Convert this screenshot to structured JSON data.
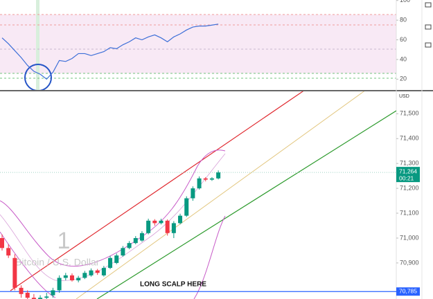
{
  "chart_data": [
    {
      "type": "line",
      "values": [
        62,
        56,
        49,
        42,
        34,
        28,
        25,
        20,
        27,
        39,
        38,
        41,
        46,
        46,
        44,
        46,
        48,
        52,
        51,
        55,
        58,
        62,
        60,
        63,
        65,
        62,
        58,
        63,
        66,
        70,
        73,
        74,
        74,
        75,
        76
      ],
      "color": "#3d6fd8",
      "ylim": [
        9,
        100.5
      ],
      "yticks": [
        20,
        40,
        60,
        80,
        100
      ]
    },
    {
      "type": "candlestick",
      "currency": "USD",
      "watermark": "1",
      "symbol": "Bitcoin / U.S. Dollar",
      "annotation": "LONG SCALP HERE",
      "up_color": "#089981",
      "down_color": "#f23645",
      "ylim": [
        70755,
        71590
      ],
      "yticks": [
        {
          "value": 70900,
          "label": "70,900"
        },
        {
          "value": 71000,
          "label": "71,000"
        },
        {
          "value": 71100,
          "label": "71,100"
        },
        {
          "value": 71200,
          "label": "71,200"
        },
        {
          "value": 71300,
          "label": "71,300"
        },
        {
          "value": 71400,
          "label": "71,400"
        },
        {
          "value": 71500,
          "label": "71,500"
        }
      ],
      "last_price": {
        "value": 71264,
        "label": "71,264"
      },
      "countdown": "00:21",
      "level": {
        "value": 70785,
        "label": "70,785"
      },
      "candles": [
        {
          "open": 71000,
          "high": 71015,
          "low": 70950,
          "close": 70960
        },
        {
          "open": 70960,
          "high": 70975,
          "low": 70920,
          "close": 70930
        },
        {
          "open": 70920,
          "high": 70935,
          "low": 70790,
          "close": 70800
        },
        {
          "open": 70800,
          "high": 70810,
          "low": 70760,
          "close": 70775
        },
        {
          "open": 70780,
          "high": 70790,
          "low": 70750,
          "close": 70760
        },
        {
          "open": 70760,
          "high": 70775,
          "low": 70740,
          "close": 70750
        },
        {
          "open": 70750,
          "high": 70770,
          "low": 70735,
          "close": 70760
        },
        {
          "open": 70760,
          "high": 70780,
          "low": 70745,
          "close": 70765
        },
        {
          "open": 70770,
          "high": 70800,
          "low": 70760,
          "close": 70790
        },
        {
          "open": 70790,
          "high": 70850,
          "low": 70780,
          "close": 70840
        },
        {
          "open": 70840,
          "high": 70860,
          "low": 70830,
          "close": 70850
        },
        {
          "open": 70850,
          "high": 70858,
          "low": 70825,
          "close": 70830
        },
        {
          "open": 70830,
          "high": 70848,
          "low": 70822,
          "close": 70840
        },
        {
          "open": 70840,
          "high": 70868,
          "low": 70835,
          "close": 70860
        },
        {
          "open": 70850,
          "high": 70878,
          "low": 70845,
          "close": 70870
        },
        {
          "open": 70870,
          "high": 70876,
          "low": 70852,
          "close": 70860
        },
        {
          "open": 70850,
          "high": 70888,
          "low": 70845,
          "close": 70880
        },
        {
          "open": 70880,
          "high": 70928,
          "low": 70875,
          "close": 70920
        },
        {
          "open": 70900,
          "high": 70938,
          "low": 70895,
          "close": 70930
        },
        {
          "open": 70930,
          "high": 70968,
          "low": 70925,
          "close": 70960
        },
        {
          "open": 70960,
          "high": 70988,
          "low": 70955,
          "close": 70980
        },
        {
          "open": 70980,
          "high": 71008,
          "low": 70975,
          "close": 71000
        },
        {
          "open": 70990,
          "high": 71028,
          "low": 70985,
          "close": 71020
        },
        {
          "open": 71020,
          "high": 71078,
          "low": 71015,
          "close": 71070
        },
        {
          "open": 71070,
          "high": 71076,
          "low": 71050,
          "close": 71060
        },
        {
          "open": 71060,
          "high": 71078,
          "low": 71055,
          "close": 71070
        },
        {
          "open": 71070,
          "high": 71075,
          "low": 71010,
          "close": 71020
        },
        {
          "open": 71020,
          "high": 71068,
          "low": 71000,
          "close": 71060
        },
        {
          "open": 71060,
          "high": 71098,
          "low": 71055,
          "close": 71090
        },
        {
          "open": 71090,
          "high": 71168,
          "low": 71085,
          "close": 71160
        },
        {
          "open": 71160,
          "high": 71208,
          "low": 71150,
          "close": 71200
        },
        {
          "open": 71200,
          "high": 71248,
          "low": 71195,
          "close": 71240
        },
        {
          "open": 71240,
          "high": 71245,
          "low": 71228,
          "close": 71235
        },
        {
          "open": 71235,
          "high": 71245,
          "low": 71230,
          "close": 71240
        },
        {
          "open": 71240,
          "high": 71272,
          "low": 71236,
          "close": 71264
        }
      ]
    }
  ]
}
